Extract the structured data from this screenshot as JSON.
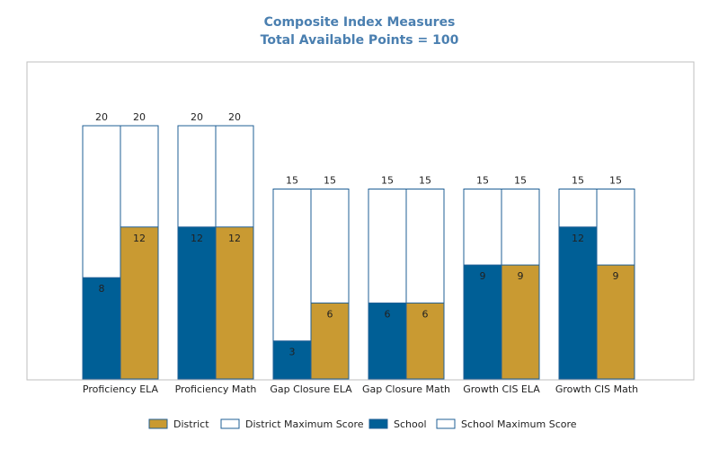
{
  "chart_data": {
    "type": "bar",
    "title": "Composite Index Measures",
    "subtitle": "Total Available Points = 100",
    "categories": [
      "Proficiency ELA",
      "Proficiency Math",
      "Gap Closure ELA",
      "Gap Closure Math",
      "Growth CIS ELA",
      "Growth CIS Math"
    ],
    "series": [
      {
        "name": "School",
        "values": [
          8,
          12,
          3,
          6,
          9,
          12
        ]
      },
      {
        "name": "School Maximum Score",
        "values": [
          20,
          20,
          15,
          15,
          15,
          15
        ]
      },
      {
        "name": "District",
        "values": [
          12,
          12,
          6,
          6,
          9,
          9
        ]
      },
      {
        "name": "District Maximum Score",
        "values": [
          20,
          20,
          15,
          15,
          15,
          15
        ]
      }
    ],
    "legend": [
      "District",
      "District Maximum Score",
      "School",
      "School Maximum Score"
    ],
    "ylim": [
      0,
      26
    ],
    "grid": false,
    "legend_position": "bottom",
    "colors": {
      "School": "#005f96",
      "District": "#c99a32",
      "Maximum": "#ffffff",
      "outline": "#1f5f96",
      "title": "#4a7fb0"
    }
  }
}
